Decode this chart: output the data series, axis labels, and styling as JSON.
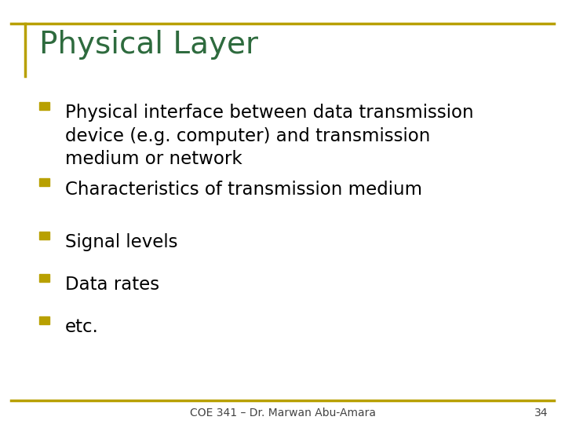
{
  "title": "Physical Layer",
  "title_color": "#2E6B3E",
  "background_color": "#FFFFFF",
  "border_color": "#B8A000",
  "bullet_color": "#B8A000",
  "text_color": "#000000",
  "footer_text": "COE 341 – Dr. Marwan Abu-Amara",
  "footer_number": "34",
  "bullets": [
    "Physical interface between data transmission\ndevice (e.g. computer) and transmission\nmedium or network",
    "Characteristics of transmission medium",
    "Signal levels",
    "Data rates",
    "etc."
  ],
  "title_fontsize": 28,
  "bullet_fontsize": 16.5,
  "footer_fontsize": 10
}
